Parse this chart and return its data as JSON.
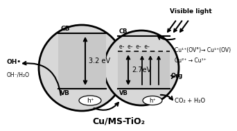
{
  "title": "Cu/MS-TiO₂",
  "visible_light_label": "Visible light",
  "cu_ov0": "Cu¹⁺(OV°)→ Cu¹⁺(OV)",
  "cu2_cu1": "Cu²⁺ → Cu¹⁺",
  "org": "Org",
  "co2": "CO₂ + H₂O",
  "oh_dot": "OH•",
  "oh_h2o": "OH⁻/H₂O",
  "energy1": "3.2 eV",
  "energy2": "2.7eV",
  "electrons_label": "e-  e-  e-  e-"
}
